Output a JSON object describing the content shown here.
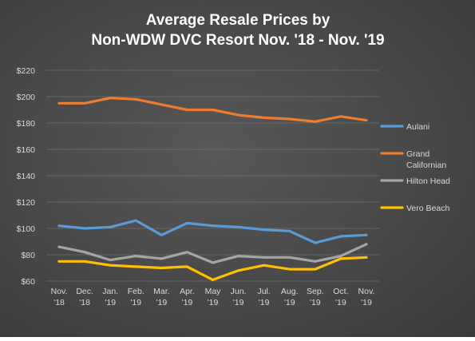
{
  "chart_data": {
    "type": "line",
    "title_lines": [
      "Average Resale Prices by",
      "Non-WDW  DVC Resort Nov. '18 - Nov. '19"
    ],
    "categories": [
      [
        "Nov.",
        "'18"
      ],
      [
        "Dec.",
        "'18"
      ],
      [
        "Jan.",
        "'19"
      ],
      [
        "Feb.",
        "'19"
      ],
      [
        "Mar.",
        "'19"
      ],
      [
        "Apr.",
        "'19"
      ],
      [
        "May",
        "'19"
      ],
      [
        "Jun.",
        "'19"
      ],
      [
        "Jul.",
        "'19"
      ],
      [
        "Aug.",
        "'19"
      ],
      [
        "Sep.",
        "'19"
      ],
      [
        "Oct.",
        "'19"
      ],
      [
        "Nov.",
        "'19"
      ]
    ],
    "y_ticks": [
      60,
      80,
      100,
      120,
      140,
      160,
      180,
      200,
      220
    ],
    "y_tick_prefix": "$",
    "ylim": [
      60,
      220
    ],
    "grid": true,
    "legend_position": "right",
    "series": [
      {
        "name": "Aulani",
        "label_lines": [
          "Aulani"
        ],
        "color": "#5b9bd5",
        "values": [
          102,
          100,
          101,
          106,
          95,
          104,
          102,
          101,
          99,
          98,
          89,
          94,
          95
        ]
      },
      {
        "name": "Grand Californian",
        "label_lines": [
          "Grand",
          "Californian"
        ],
        "color": "#ed7d31",
        "values": [
          195,
          195,
          199,
          198,
          194,
          190,
          190,
          186,
          184,
          183,
          181,
          185,
          182
        ]
      },
      {
        "name": "Hilton Head",
        "label_lines": [
          "Hilton Head"
        ],
        "color": "#a5a5a5",
        "values": [
          86,
          82,
          76,
          79,
          77,
          82,
          74,
          79,
          78,
          78,
          75,
          79,
          88
        ]
      },
      {
        "name": "Vero Beach",
        "label_lines": [
          "Vero Beach"
        ],
        "color": "#ffc000",
        "values": [
          75,
          75,
          72,
          71,
          70,
          71,
          61,
          68,
          72,
          69,
          69,
          77,
          78
        ]
      }
    ]
  }
}
